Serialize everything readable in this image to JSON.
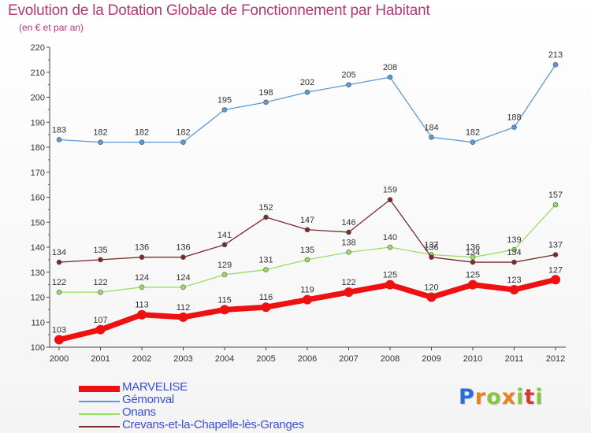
{
  "title": "Evolution de la Dotation Globale de Fonctionnement par Habitant",
  "subtitle": "(en € et par an)",
  "logo": "Proxiti",
  "chart_data": {
    "type": "line",
    "x": [
      2000,
      2001,
      2002,
      2003,
      2004,
      2005,
      2006,
      2007,
      2008,
      2009,
      2010,
      2011,
      2012
    ],
    "ylim": [
      100,
      220
    ],
    "yticks": [
      100,
      110,
      120,
      130,
      140,
      150,
      160,
      170,
      180,
      190,
      200,
      210,
      220
    ],
    "grid": false,
    "legend_position": "bottom-left",
    "series": [
      {
        "name": "MARVELISE",
        "color": "#ee1111",
        "values": [
          103,
          107,
          113,
          112,
          115,
          116,
          119,
          122,
          125,
          120,
          125,
          123,
          127
        ]
      },
      {
        "name": "Gémonval",
        "color": "#5b9bd5",
        "values": [
          183,
          182,
          182,
          182,
          195,
          198,
          202,
          205,
          208,
          184,
          182,
          188,
          213
        ]
      },
      {
        "name": "Onans",
        "color": "#99dd66",
        "values": [
          122,
          122,
          124,
          124,
          129,
          131,
          135,
          138,
          140,
          137,
          136,
          139,
          157
        ]
      },
      {
        "name": "Crevans-et-la-Chapelle-lès-Granges",
        "color": "#7a2a2a",
        "values": [
          134,
          135,
          136,
          136,
          141,
          152,
          147,
          146,
          159,
          136,
          134,
          134,
          137
        ]
      }
    ]
  }
}
